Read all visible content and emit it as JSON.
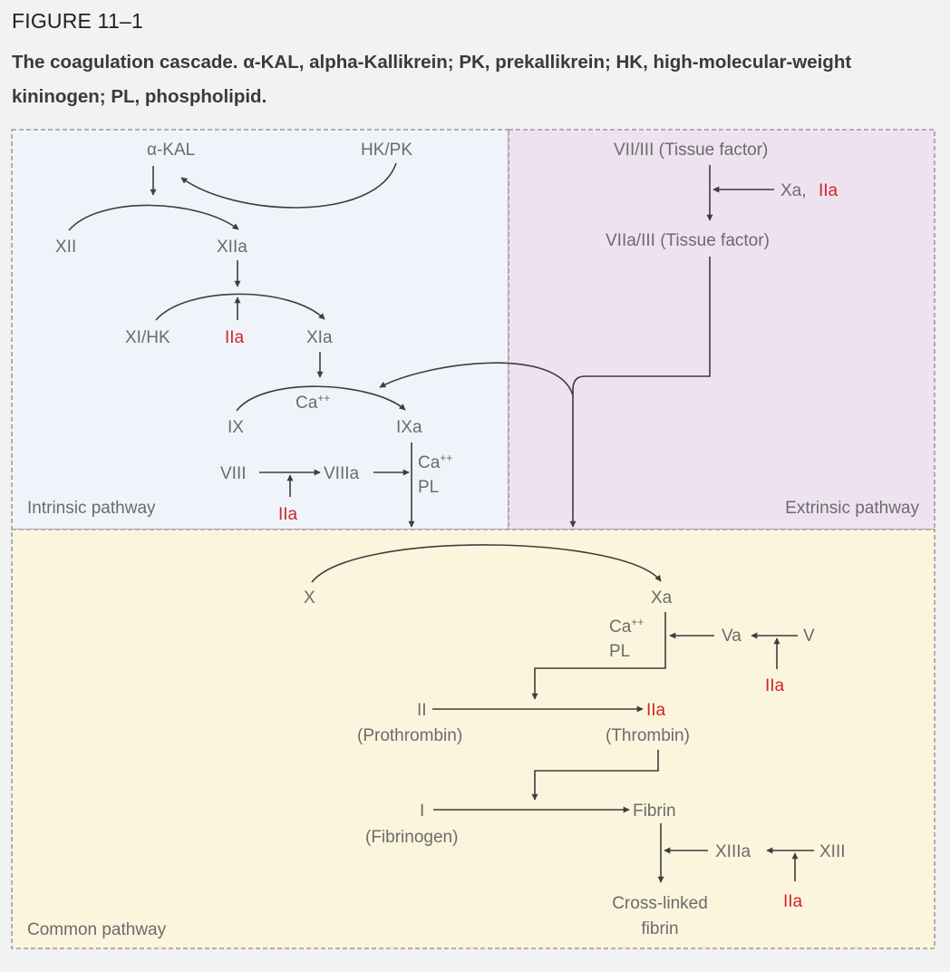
{
  "figure": {
    "label": "FIGURE 11–1",
    "caption": "The coagulation cascade. α-KAL, alpha-Kallikrein; PK, prekallikrein; HK, high-molecular-weight kininogen; PL, phospholipid."
  },
  "regions": {
    "intrinsic": "Intrinsic pathway",
    "extrinsic": "Extrinsic pathway",
    "common": "Common pathway"
  },
  "colors": {
    "intrinsic_bg": "#f0f4fa",
    "extrinsic_bg": "#eee2f0",
    "common_bg": "#fcf5dd",
    "thrombin_red": "#d2232a",
    "text_gray": "#6b6b6b",
    "line": "#3d3d3d"
  },
  "nodes": {
    "akal": "α-KAL",
    "hkpk": "HK/PK",
    "xii": "XII",
    "xiia": "XIIa",
    "xihk": "XI/HK",
    "iia_1": "IIa",
    "xia": "XIa",
    "ca_1": "Ca",
    "ca_1_sup": "++",
    "ix": "IX",
    "ixa": "IXa",
    "viii": "VIII",
    "viiia": "VIIIa",
    "ca_2": "Ca",
    "ca_2_sup": "++",
    "pl_1": "PL",
    "iia_2": "IIa",
    "vii_iii": "VII/III (Tissue factor)",
    "xa_ext": "Xa,",
    "iia_ext": "IIa",
    "viia_iii": "VIIa/III (Tissue factor)",
    "x": "X",
    "xa": "Xa",
    "ca_3": "Ca",
    "ca_3_sup": "++",
    "pl_2": "PL",
    "va": "Va",
    "v": "V",
    "iia_3": "IIa",
    "ii": "II",
    "prothrombin": "(Prothrombin)",
    "iia_4": "IIa",
    "thrombin": "(Thrombin)",
    "i": "I",
    "fibrinogen": "(Fibrinogen)",
    "fibrin": "Fibrin",
    "xiiia": "XIIIa",
    "xiii": "XIII",
    "cross_linked_1": "Cross-linked",
    "cross_linked_2": "fibrin",
    "iia_5": "IIa"
  }
}
